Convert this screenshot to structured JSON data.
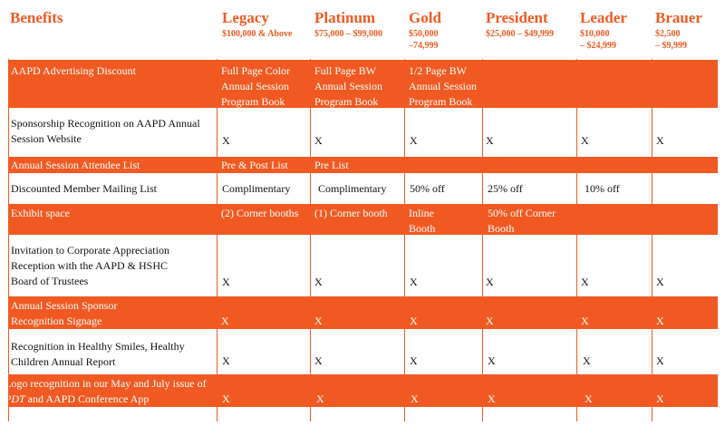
{
  "header": {
    "benefits_label": "Benefits",
    "tiers": [
      {
        "name": "Legacy",
        "range": "$100,000 & Above"
      },
      {
        "name": "Platinum",
        "range": "$75,000 – $99,000"
      },
      {
        "name": "Gold",
        "range": "$50,000\n–74,999"
      },
      {
        "name": "President",
        "range": "$25,000 – $49,999"
      },
      {
        "name": "Leader",
        "range": "$10,000\n– $24,999"
      },
      {
        "name": "Brauer",
        "range": "$2,500\n– $9,999"
      }
    ]
  },
  "rows": [
    {
      "benefit": "AAPD Advertising Discount",
      "cells": [
        "Full Page Color Annual Session Program Book",
        "Full Page BW Annual Session Program Book",
        "1/2 Page BW Annual Session Program Book",
        "",
        "",
        ""
      ]
    },
    {
      "benefit": "Sponsorship Recognition on AAPD Annual Session Website",
      "cells": [
        "X",
        "X",
        "X",
        "X",
        "X",
        "X"
      ]
    },
    {
      "benefit": "Annual Session Attendee List",
      "cells": [
        "Pre & Post List",
        "Pre List",
        "",
        "",
        "",
        ""
      ]
    },
    {
      "benefit": "Discounted Member Mailing List",
      "cells": [
        "Complimentary",
        "Complimentary",
        "50% off",
        "25% off",
        "10% off",
        ""
      ]
    },
    {
      "benefit": "Exhibit space",
      "cells": [
        "(2) Corner booths",
        "(1) Corner booth",
        "Inline Booth",
        "50% off Corner Booth",
        "",
        ""
      ]
    },
    {
      "benefit": "Invitation to Corporate Appreciation Reception with the AAPD & HSHC Board of Trustees",
      "cells": [
        "X",
        "X",
        "X",
        "X",
        "X",
        "X"
      ]
    },
    {
      "benefit": "Annual Session Sponsor Recognition Signage",
      "cells": [
        "X",
        "X",
        "X",
        "X",
        "X",
        "X"
      ]
    },
    {
      "benefit": "Recognition in Healthy Smiles, Healthy Children Annual Report",
      "cells": [
        "X",
        "X",
        "X",
        "X",
        "X",
        "X"
      ]
    },
    {
      "benefit_parts": [
        "Logo recognition in our May and July issue of ",
        "PDT",
        " and AAPD Conference App"
      ],
      "cells": [
        "X",
        "X",
        "X",
        "X",
        "X",
        "X"
      ]
    }
  ],
  "colors": {
    "accent": "#f05a22",
    "text": "#111111",
    "background": "#ffffff"
  }
}
